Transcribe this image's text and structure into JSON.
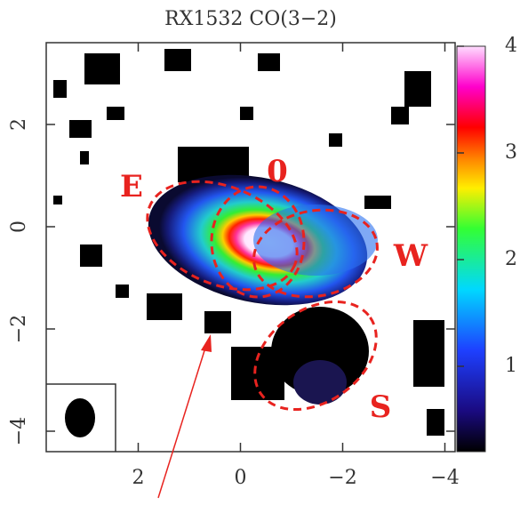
{
  "chart_data": {
    "type": "map",
    "title": "RX1532 CO(3−2)",
    "xlim": [
      3.8,
      -4.2
    ],
    "xticks": [
      2,
      0,
      {
        "value": -2,
        "label": "−2"
      },
      {
        "value": -4,
        "label": "−4"
      }
    ],
    "ylim": [
      -4.4,
      3.6
    ],
    "yticks": [
      {
        "value": -4,
        "label": "−4"
      },
      {
        "value": -2,
        "label": "−2"
      },
      0,
      2
    ],
    "colorbar": {
      "lim": [
        0.2,
        4
      ],
      "ticks": [
        1,
        2,
        3,
        4
      ]
    },
    "annotations": [
      "E",
      "0",
      "W",
      "S"
    ]
  }
}
